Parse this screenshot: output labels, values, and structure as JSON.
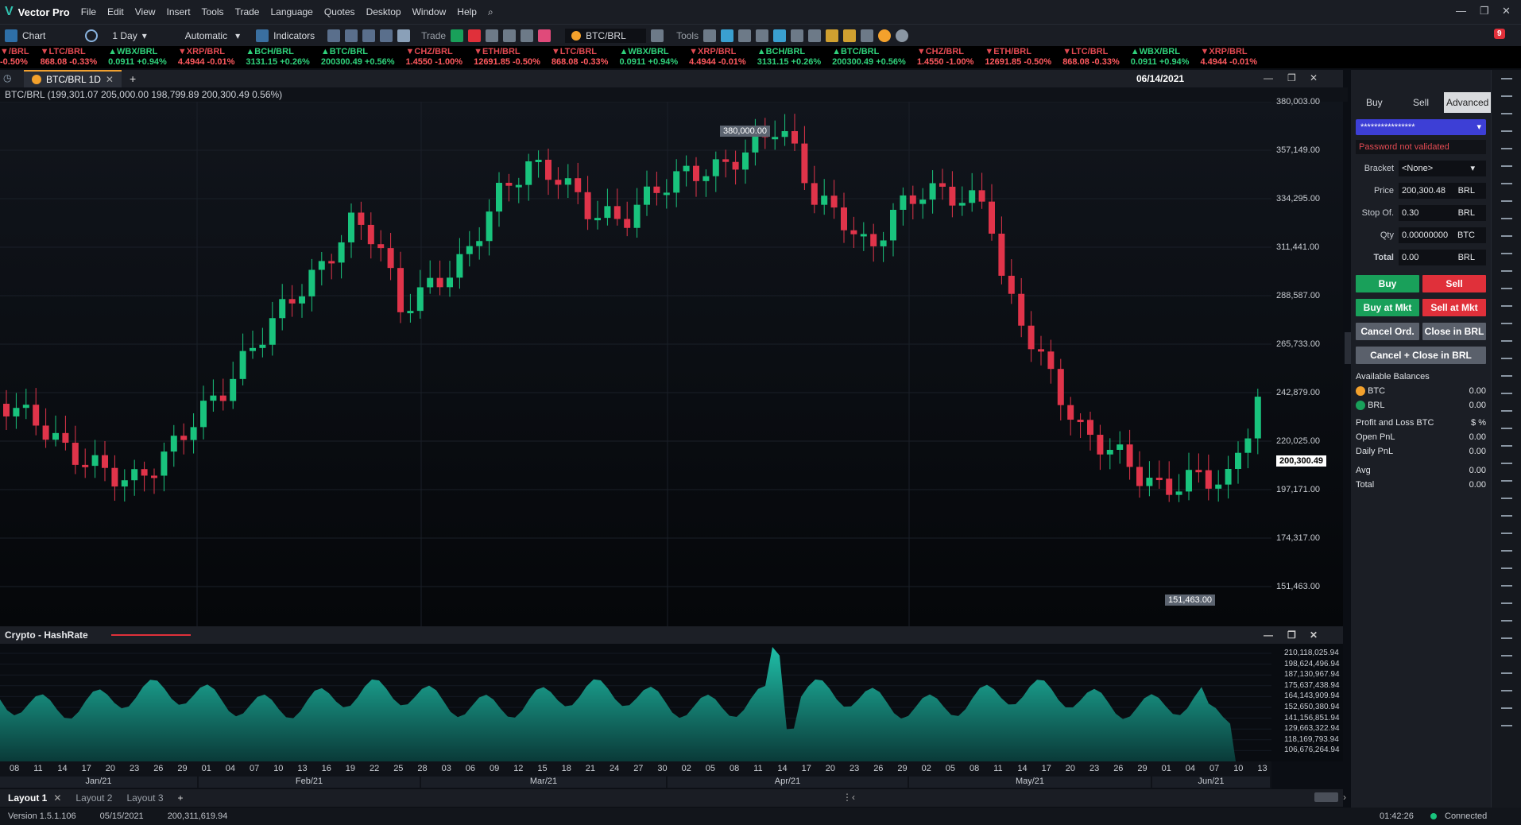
{
  "app": {
    "name": "Vector Pro"
  },
  "menu": [
    "File",
    "Edit",
    "View",
    "Insert",
    "Tools",
    "Trade",
    "Language",
    "Quotes",
    "Desktop",
    "Window",
    "Help"
  ],
  "toolbar": {
    "chart_label": "Chart",
    "interval": "1 Day",
    "scale": "Automatic",
    "indicators": "Indicators",
    "trade": "Trade",
    "symbol": "BTC/BRL",
    "tools": "Tools",
    "notif_count": "9"
  },
  "ticker": [
    {
      "pair": "/BRL",
      "val": "-0.50%",
      "dir": "dn"
    },
    {
      "pair": "LTC/BRL",
      "val": "868.08 -0.33%",
      "dir": "dn"
    },
    {
      "pair": "WBX/BRL",
      "val": "0.0911 +0.94%",
      "dir": "up"
    },
    {
      "pair": "XRP/BRL",
      "val": "4.4944 -0.01%",
      "dir": "dn"
    },
    {
      "pair": "BCH/BRL",
      "val": "3131.15 +0.26%",
      "dir": "up"
    },
    {
      "pair": "BTC/BRL",
      "val": "200300.49 +0.56%",
      "dir": "up"
    },
    {
      "pair": "CHZ/BRL",
      "val": "1.4550 -1.00%",
      "dir": "dn"
    },
    {
      "pair": "ETH/BRL",
      "val": "12691.85 -0.50%",
      "dir": "dn"
    },
    {
      "pair": "LTC/BRL",
      "val": "868.08 -0.33%",
      "dir": "dn"
    },
    {
      "pair": "WBX/BRL",
      "val": "0.0911 +0.94%",
      "dir": "up"
    },
    {
      "pair": "XRP/BRL",
      "val": "4.4944 -0.01%",
      "dir": "dn"
    },
    {
      "pair": "BCH/BRL",
      "val": "3131.15 +0.26%",
      "dir": "up"
    },
    {
      "pair": "BTC/BRL",
      "val": "200300.49 +0.56%",
      "dir": "up"
    },
    {
      "pair": "CHZ/BRL",
      "val": "1.4550 -1.00%",
      "dir": "dn"
    },
    {
      "pair": "ETH/BRL",
      "val": "12691.85 -0.50%",
      "dir": "dn"
    },
    {
      "pair": "LTC/BRL",
      "val": "868.08 -0.33%",
      "dir": "dn"
    },
    {
      "pair": "WBX/BRL",
      "val": "0.0911 +0.94%",
      "dir": "up"
    },
    {
      "pair": "XRP/BRL",
      "val": "4.4944 -0.01%",
      "dir": "dn"
    }
  ],
  "tab": {
    "title": "BTC/BRL 1D",
    "date": "06/14/2021"
  },
  "infobar": "BTC/BRL (199,301.07 205,000.00 198,799.89 200,300.49 0.56%)",
  "price_axis": [
    "380,003.00",
    "357,149.00",
    "334,295.00",
    "311,441.00",
    "288,587.00",
    "265,733.00",
    "242,879.00",
    "220,025.00",
    "197,171.00",
    "174,317.00",
    "151,463.00"
  ],
  "last_price_label": "200,300.49",
  "high_label": "380,000.00",
  "low_label": "151,463.00",
  "indicator": {
    "title": "Crypto - HashRate"
  },
  "ind_axis": [
    "210,118,025.94",
    "198,624,496.94",
    "187,130,967.94",
    "175,637,438.94",
    "164,143,909.94",
    "152,650,380.94",
    "141,156,851.94",
    "129,663,322.94",
    "118,169,793.94",
    "106,676,264.94"
  ],
  "days": [
    "08",
    "11",
    "14",
    "17",
    "20",
    "23",
    "26",
    "29",
    "01",
    "04",
    "07",
    "10",
    "13",
    "16",
    "19",
    "22",
    "25",
    "28",
    "03",
    "06",
    "09",
    "12",
    "15",
    "18",
    "21",
    "24",
    "27",
    "30",
    "02",
    "05",
    "08",
    "11",
    "14",
    "17",
    "20",
    "23",
    "26",
    "29",
    "02",
    "05",
    "08",
    "11",
    "14",
    "17",
    "20",
    "23",
    "26",
    "29",
    "01",
    "04",
    "07",
    "10",
    "13"
  ],
  "months": [
    "Jan/21",
    "Feb/21",
    "Mar/21",
    "Apr/21",
    "May/21",
    "Jun/21"
  ],
  "layouts": [
    "Layout 1",
    "Layout 2",
    "Layout 3"
  ],
  "status": {
    "version": "Version 1.5.1.106",
    "date": "05/15/2021",
    "value": "200,311,619.94",
    "time": "01:42:26",
    "conn": "Connected"
  },
  "panel": {
    "tabs": [
      "Buy",
      "Sell",
      "Advanced"
    ],
    "account": "****************",
    "pw_msg": "Password not validated",
    "bracket": {
      "label": "Bracket",
      "value": "<None>"
    },
    "price": {
      "label": "Price",
      "value": "200,300.48",
      "unit": "BRL"
    },
    "stop": {
      "label": "Stop Of.",
      "value": "0.30",
      "unit": "BRL"
    },
    "qty": {
      "label": "Qty",
      "value": "0.00000000",
      "unit": "BTC"
    },
    "total": {
      "label": "Total",
      "value": "0.00",
      "unit": "BRL"
    },
    "btn_buy": "Buy",
    "btn_sell": "Sell",
    "btn_buy_mkt": "Buy at Mkt",
    "btn_sell_mkt": "Sell at Mkt",
    "btn_cancel": "Cancel Ord.",
    "btn_close": "Close in BRL",
    "btn_cancel_close": "Cancel + Close in BRL",
    "balances_title": "Available Balances",
    "balances": [
      {
        "name": "BTC",
        "value": "0.00"
      },
      {
        "name": "BRL",
        "value": "0.00"
      }
    ],
    "pnl_title": "Profit and Loss BTC",
    "pnl": [
      {
        "name": "Open PnL",
        "value": "0.00"
      },
      {
        "name": "Daily PnL",
        "value": "0.00"
      },
      {
        "name": "Avg",
        "value": "0.00"
      },
      {
        "name": "Total",
        "value": "0.00"
      }
    ]
  },
  "colors": {
    "up": "#19c37d",
    "down": "#e0344a",
    "hash": "#1aa99a"
  }
}
